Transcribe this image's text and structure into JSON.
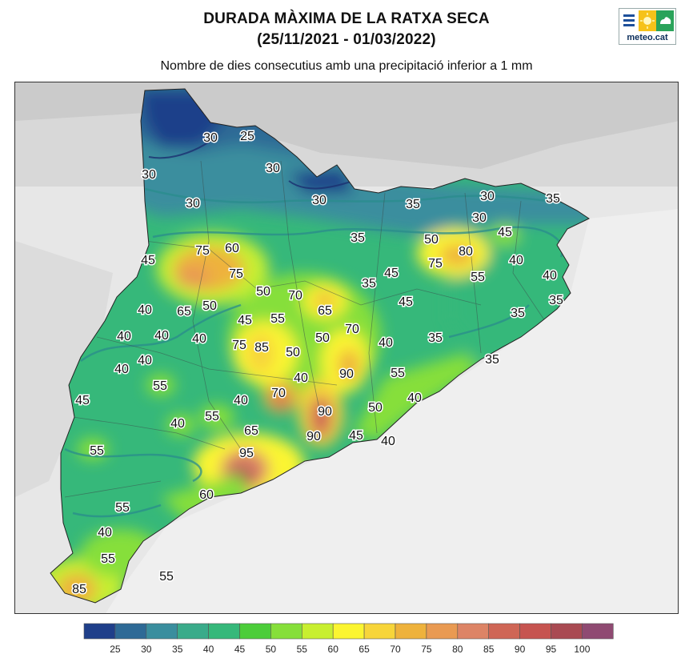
{
  "header": {
    "title_line1": "DURADA MÀXIMA DE LA RATXA SECA",
    "title_line2": "(25/11/2021 - 01/03/2022)",
    "subtitle": "Nombre de dies consecutius amb una precipitació inferior a 1 mm"
  },
  "logo": {
    "text": "meteo.cat",
    "icon": "meteocat-logo"
  },
  "legend": {
    "colors": [
      "#1f3f8a",
      "#2e6a96",
      "#3a8e9e",
      "#3aab8a",
      "#36b87a",
      "#4ccd3a",
      "#86df3a",
      "#c8ef30",
      "#fbf531",
      "#f7d53a",
      "#eeb23c",
      "#e99a52",
      "#dd8466",
      "#cf6656",
      "#c65450",
      "#a94a52",
      "#8f4a72"
    ],
    "ticks": [
      "25",
      "30",
      "35",
      "40",
      "45",
      "50",
      "55",
      "60",
      "65",
      "70",
      "75",
      "80",
      "85",
      "90",
      "95",
      "100"
    ]
  },
  "map_labels": [
    {
      "text": "30"
    },
    {
      "text": "25"
    },
    {
      "text": "30"
    },
    {
      "text": "30"
    },
    {
      "text": "30"
    },
    {
      "text": "30"
    },
    {
      "text": "35"
    },
    {
      "text": "30"
    },
    {
      "text": "30"
    },
    {
      "text": "35"
    },
    {
      "text": "35"
    },
    {
      "text": "45"
    },
    {
      "text": "50"
    },
    {
      "text": "80"
    },
    {
      "text": "75"
    },
    {
      "text": "55"
    },
    {
      "text": "40"
    },
    {
      "text": "40"
    },
    {
      "text": "35"
    },
    {
      "text": "35"
    },
    {
      "text": "75"
    },
    {
      "text": "60"
    },
    {
      "text": "75"
    },
    {
      "text": "45"
    },
    {
      "text": "50"
    },
    {
      "text": "70"
    },
    {
      "text": "35"
    },
    {
      "text": "45"
    },
    {
      "text": "45"
    },
    {
      "text": "40"
    },
    {
      "text": "65"
    },
    {
      "text": "50"
    },
    {
      "text": "65"
    },
    {
      "text": "45"
    },
    {
      "text": "55"
    },
    {
      "text": "40"
    },
    {
      "text": "40"
    },
    {
      "text": "40"
    },
    {
      "text": "75"
    },
    {
      "text": "85"
    },
    {
      "text": "50"
    },
    {
      "text": "50"
    },
    {
      "text": "70"
    },
    {
      "text": "40"
    },
    {
      "text": "35"
    },
    {
      "text": "35"
    },
    {
      "text": "40"
    },
    {
      "text": "40"
    },
    {
      "text": "40"
    },
    {
      "text": "55"
    },
    {
      "text": "90"
    },
    {
      "text": "55"
    },
    {
      "text": "45"
    },
    {
      "text": "70"
    },
    {
      "text": "40"
    },
    {
      "text": "40"
    },
    {
      "text": "90"
    },
    {
      "text": "50"
    },
    {
      "text": "40"
    },
    {
      "text": "55"
    },
    {
      "text": "90"
    },
    {
      "text": "45"
    },
    {
      "text": "40"
    },
    {
      "text": "65"
    },
    {
      "text": "55"
    },
    {
      "text": "95"
    },
    {
      "text": "60"
    },
    {
      "text": "55"
    },
    {
      "text": "40"
    },
    {
      "text": "55"
    },
    {
      "text": "55"
    },
    {
      "text": "85"
    }
  ]
}
